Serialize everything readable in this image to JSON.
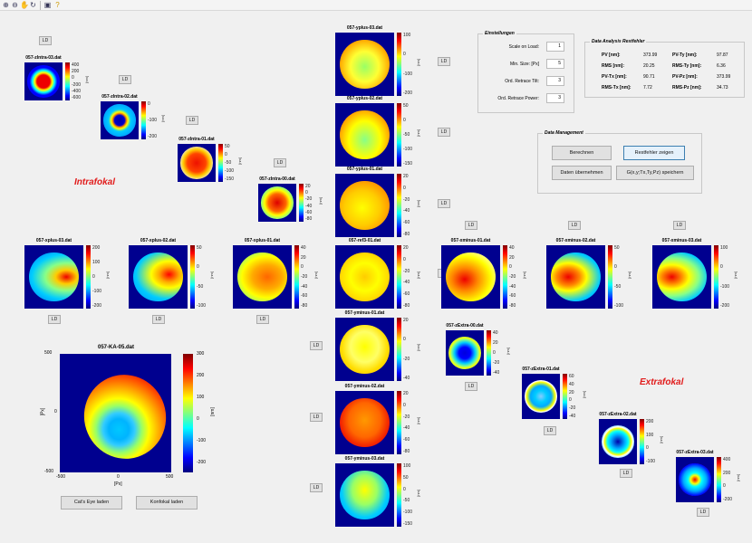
{
  "toolbar": {
    "icons": [
      "zoom-in-icon",
      "zoom-out-icon",
      "pan-icon",
      "rotate-icon",
      "save-figure-icon",
      "help-icon"
    ]
  },
  "labels": {
    "intrafokal": "Intrafokal",
    "extrafokal": "Extrafokal"
  },
  "ld_label": "LD",
  "tiles": [
    {
      "id": "ztm3",
      "title": "057-zIntra-03.dat",
      "ticks": [
        "400",
        "200",
        "0",
        "-200",
        "-400",
        "-600"
      ],
      "unit": "[nm]"
    },
    {
      "id": "ztm2",
      "title": "057-zIntra-02.dat",
      "ticks": [
        "0",
        "-100",
        "-200"
      ],
      "unit": "[nm]"
    },
    {
      "id": "ztm1",
      "title": "057-zIntra-01.dat",
      "ticks": [
        "50",
        "0",
        "-50",
        "-100",
        "-150"
      ],
      "unit": "[nm]"
    },
    {
      "id": "ztm0",
      "title": "057-zIntra-00.dat",
      "ticks": [
        "20",
        "0",
        "-20",
        "-40",
        "-60",
        "-80"
      ],
      "unit": "[nm]"
    },
    {
      "id": "yp3",
      "title": "057-yplus-03.dat",
      "ticks": [
        "100",
        "0",
        "-100",
        "-200"
      ],
      "unit": "[nm]"
    },
    {
      "id": "yp2",
      "title": "057-yplus-02.dat",
      "ticks": [
        "50",
        "0",
        "-50",
        "-100",
        "-150"
      ],
      "unit": "[nm]"
    },
    {
      "id": "yp1",
      "title": "057-yplus-01.dat",
      "ticks": [
        "20",
        "0",
        "-20",
        "-40",
        "-60",
        "-80"
      ],
      "unit": "[nm]"
    },
    {
      "id": "xp3",
      "title": "057-xplus-03.dat",
      "ticks": [
        "200",
        "100",
        "0",
        "-100",
        "-200"
      ],
      "unit": "[nm]"
    },
    {
      "id": "xp2",
      "title": "057-xplus-02.dat",
      "ticks": [
        "50",
        "0",
        "-50",
        "-100"
      ],
      "unit": "[nm]"
    },
    {
      "id": "xp1",
      "title": "057-xplus-01.dat",
      "ticks": [
        "40",
        "20",
        "0",
        "-20",
        "-40",
        "-60",
        "-80"
      ],
      "unit": "[nm]"
    },
    {
      "id": "ref",
      "title": "057-ref3-01.dat",
      "ticks": [
        "20",
        "0",
        "-20",
        "-40",
        "-60",
        "-80"
      ],
      "unit": "[nm]"
    },
    {
      "id": "xm1",
      "title": "057-xminus-01.dat",
      "ticks": [
        "40",
        "20",
        "0",
        "-20",
        "-40",
        "-60",
        "-80"
      ],
      "unit": "[nm]"
    },
    {
      "id": "xm2",
      "title": "057-xminus-02.dat",
      "ticks": [
        "50",
        "0",
        "-50",
        "-100"
      ],
      "unit": "[nm]"
    },
    {
      "id": "xm3",
      "title": "057-xminus-03.dat",
      "ticks": [
        "100",
        "0",
        "-100",
        "-200"
      ],
      "unit": "[nm]"
    },
    {
      "id": "ym1",
      "title": "057-yminus-01.dat",
      "ticks": [
        "20",
        "0",
        "-20",
        "-40"
      ],
      "unit": "[nm]"
    },
    {
      "id": "ym2",
      "title": "057-yminus-02.dat",
      "ticks": [
        "20",
        "0",
        "-20",
        "-40",
        "-60",
        "-80"
      ],
      "unit": "[nm]"
    },
    {
      "id": "ym3",
      "title": "057-yminus-03.dat",
      "ticks": [
        "100",
        "50",
        "0",
        "-50",
        "-100",
        "-150"
      ],
      "unit": "[nm]"
    },
    {
      "id": "ze0",
      "title": "057-zExtra-00.dat",
      "ticks": [
        "40",
        "20",
        "0",
        "-20",
        "-40"
      ],
      "unit": "[nm]"
    },
    {
      "id": "ze1",
      "title": "057-zExtra-01.dat",
      "ticks": [
        "60",
        "40",
        "20",
        "0",
        "-20",
        "-40"
      ],
      "unit": "[nm]"
    },
    {
      "id": "ze2",
      "title": "057-zExtra-02.dat",
      "ticks": [
        "200",
        "100",
        "0",
        "-100"
      ],
      "unit": "[nm]"
    },
    {
      "id": "ze3",
      "title": "057-zExtra-03.dat",
      "ticks": [
        "400",
        "200",
        "0",
        "-200"
      ],
      "unit": "[nm]"
    }
  ],
  "main_plot": {
    "title": "057-KA-05.dat",
    "xticks": [
      "-500",
      "0",
      "500"
    ],
    "yticks": [
      "500",
      "0",
      "-500"
    ],
    "xlabel": "[Px]",
    "ylabel": "[Px]",
    "cbar_ticks": [
      "300",
      "200",
      "100",
      "0",
      "-100",
      "-200"
    ],
    "cbar_label": "[nm]",
    "btn_cats_eye": "Cat's Eye laden",
    "btn_konfokal": "Konfokal laden"
  },
  "einstellungen": {
    "legend": "Einstellungen",
    "rows": [
      {
        "label": "Scale on Load:",
        "value": "1"
      },
      {
        "label": "Min. Size: [Px]",
        "value": "5"
      },
      {
        "label": "Ord. Retrace Tilt:",
        "value": "3"
      },
      {
        "label": "Ord. Retrace Power:",
        "value": "3"
      }
    ]
  },
  "analysis": {
    "legend": "Data Analysis Restfehler",
    "rows": [
      [
        {
          "k": "PV [nm]:",
          "v": "373.99"
        },
        {
          "k": "PV-Ty [nm]:",
          "v": "97.87"
        }
      ],
      [
        {
          "k": "RMS [nm]:",
          "v": "20.25"
        },
        {
          "k": "RMS-Ty [nm]:",
          "v": "6.36"
        }
      ],
      [
        {
          "k": "PV-Tx [nm]:",
          "v": "90.71"
        },
        {
          "k": "PV-Pz [nm]:",
          "v": "373.99"
        }
      ],
      [
        {
          "k": "RMS-Tx [nm]:",
          "v": "7.72"
        },
        {
          "k": "RMS-Pz [nm]:",
          "v": "34.73"
        }
      ]
    ]
  },
  "data_management": {
    "legend": "Data Management",
    "btn_berechnen": "Berechnen",
    "btn_restfehler": "Restfehler zeigen",
    "btn_uebernehmen": "Daten übernehmen",
    "btn_speichern": "G(x,y;Tx,Ty,Pz) speichern"
  }
}
